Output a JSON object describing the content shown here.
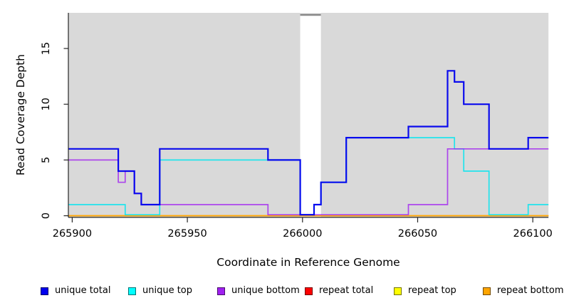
{
  "chart_data": {
    "type": "line",
    "subtype": "step-coverage",
    "title": "",
    "xlabel": "Coordinate in Reference Genome",
    "ylabel": "Read Coverage Depth",
    "xlim": [
      265898,
      266107
    ],
    "ylim": [
      0,
      18.2
    ],
    "xticks": [
      265900,
      265950,
      266000,
      266050,
      266100
    ],
    "yticks": [
      0,
      5,
      10,
      15
    ],
    "grid": "off",
    "plot_bg": "#d9d9d9",
    "axis_color": "#262626",
    "coverage_gap": {
      "x_start": 265999,
      "x_end": 266008,
      "marker_color": "#8f8f8f",
      "fill": "#ffffff"
    },
    "series": [
      {
        "name": "unique total",
        "color": "#0000EE",
        "group": "unique",
        "points": [
          [
            265898,
            6
          ],
          [
            265920,
            4
          ],
          [
            265927,
            2
          ],
          [
            265930,
            1
          ],
          [
            265938,
            6
          ],
          [
            265985,
            5
          ],
          [
            265999,
            0
          ],
          [
            266005,
            1
          ],
          [
            266008,
            3
          ],
          [
            266019,
            7
          ],
          [
            266046,
            8
          ],
          [
            266063,
            13
          ],
          [
            266066,
            12
          ],
          [
            266070,
            10
          ],
          [
            266081,
            6
          ],
          [
            266098,
            7
          ],
          [
            266107,
            7
          ]
        ]
      },
      {
        "name": "unique top",
        "color": "#00E5EE",
        "group": "unique",
        "points": [
          [
            265898,
            1
          ],
          [
            265923,
            0
          ],
          [
            265938,
            5
          ],
          [
            265999,
            0
          ],
          [
            266005,
            1
          ],
          [
            266008,
            3
          ],
          [
            266019,
            7
          ],
          [
            266066,
            6
          ],
          [
            266070,
            4
          ],
          [
            266081,
            0
          ],
          [
            266098,
            1
          ],
          [
            266107,
            1
          ]
        ]
      },
      {
        "name": "unique bottom",
        "color": "#A020F0",
        "group": "unique",
        "points": [
          [
            265898,
            5
          ],
          [
            265920,
            3
          ],
          [
            265923,
            4
          ],
          [
            265927,
            2
          ],
          [
            265930,
            1
          ],
          [
            265985,
            0
          ],
          [
            266046,
            1
          ],
          [
            266063,
            6
          ],
          [
            266107,
            6
          ]
        ]
      },
      {
        "name": "repeat total",
        "color": "#FF0000",
        "group": "repeat",
        "points": [
          [
            265898,
            0
          ],
          [
            266107,
            0
          ]
        ]
      },
      {
        "name": "repeat top",
        "color": "#FFFF00",
        "group": "repeat",
        "points": [
          [
            265898,
            0
          ],
          [
            266107,
            0
          ]
        ]
      },
      {
        "name": "repeat bottom",
        "color": "#FFA500",
        "group": "repeat",
        "points": [
          [
            265898,
            0
          ],
          [
            266107,
            0
          ]
        ]
      }
    ],
    "legend": {
      "position": "bottom",
      "entries": [
        {
          "label": "unique total",
          "color": "#0000EE"
        },
        {
          "label": "unique top",
          "color": "#00FFFF"
        },
        {
          "label": "unique bottom",
          "color": "#A020F0"
        },
        {
          "label": "repeat total",
          "color": "#FF0000"
        },
        {
          "label": "repeat top",
          "color": "#FFFF00"
        },
        {
          "label": "repeat bottom",
          "color": "#FFA500"
        }
      ]
    }
  }
}
